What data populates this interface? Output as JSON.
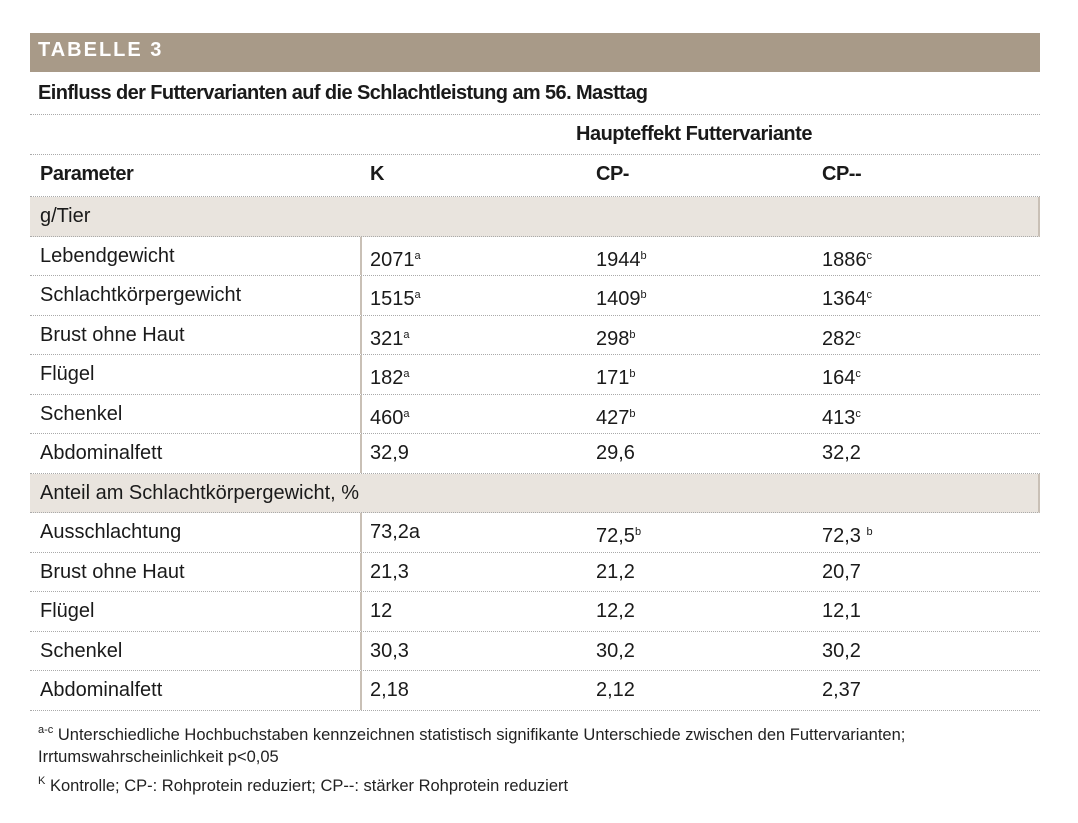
{
  "header": {
    "label": "TABELLE 3",
    "title": "Einfluss der Futtervarianten auf die Schlachtleistung am 56. Masttag"
  },
  "table": {
    "group_header": "Haupteffekt Futtervariante",
    "columns": [
      "Parameter",
      "K",
      "CP-",
      "CP--"
    ],
    "sections": [
      {
        "label": "g/Tier",
        "rows": [
          [
            "Lebendgewicht",
            {
              "text": "2071",
              "sup": "a"
            },
            {
              "text": "1944",
              "sup": "b"
            },
            {
              "text": "1886",
              "sup": "c"
            }
          ],
          [
            "Schlachtkörpergewicht",
            {
              "text": "1515",
              "sup": "a"
            },
            {
              "text": "1409",
              "sup": "b"
            },
            {
              "text": "1364",
              "sup": "c"
            }
          ],
          [
            "Brust ohne Haut",
            {
              "text": "321",
              "sup": "a"
            },
            {
              "text": "298",
              "sup": "b"
            },
            {
              "text": "282",
              "sup": "c"
            }
          ],
          [
            "Flügel",
            {
              "text": "182",
              "sup": "a"
            },
            {
              "text": "171",
              "sup": "b"
            },
            {
              "text": "164",
              "sup": "c"
            }
          ],
          [
            "Schenkel",
            {
              "text": "460",
              "sup": "a"
            },
            {
              "text": "427",
              "sup": "b"
            },
            {
              "text": "413",
              "sup": "c"
            }
          ],
          [
            "Abdominalfett",
            "32,9",
            "29,6",
            "32,2"
          ]
        ]
      },
      {
        "label": "Anteil am Schlachtkörpergewicht, %",
        "rows": [
          [
            "Ausschlachtung",
            "73,2a",
            {
              "text": "72,5",
              "sup": "b"
            },
            {
              "text": "72,3 ",
              "sup": "b"
            }
          ],
          [
            "Brust ohne Haut",
            "21,3",
            "21,2",
            "20,7"
          ],
          [
            "Flügel",
            "12",
            "12,2",
            "12,1"
          ],
          [
            "Schenkel",
            "30,3",
            "30,2",
            "30,2"
          ],
          [
            "Abdominalfett",
            "2,18",
            "2,12",
            "2,37"
          ]
        ]
      }
    ]
  },
  "footnotes": [
    {
      "sup": "a-c",
      "text": "Unterschiedliche Hochbuchstaben kennzeichnen statistisch signifikante Unterschiede zwischen den Futtervarianten; Irrtumswahrscheinlichkeit p<0,05"
    },
    {
      "sup": "K",
      "text": "Kontrolle; CP-: Rohprotein reduziert; CP--: stärker Rohprotein reduziert"
    }
  ]
}
